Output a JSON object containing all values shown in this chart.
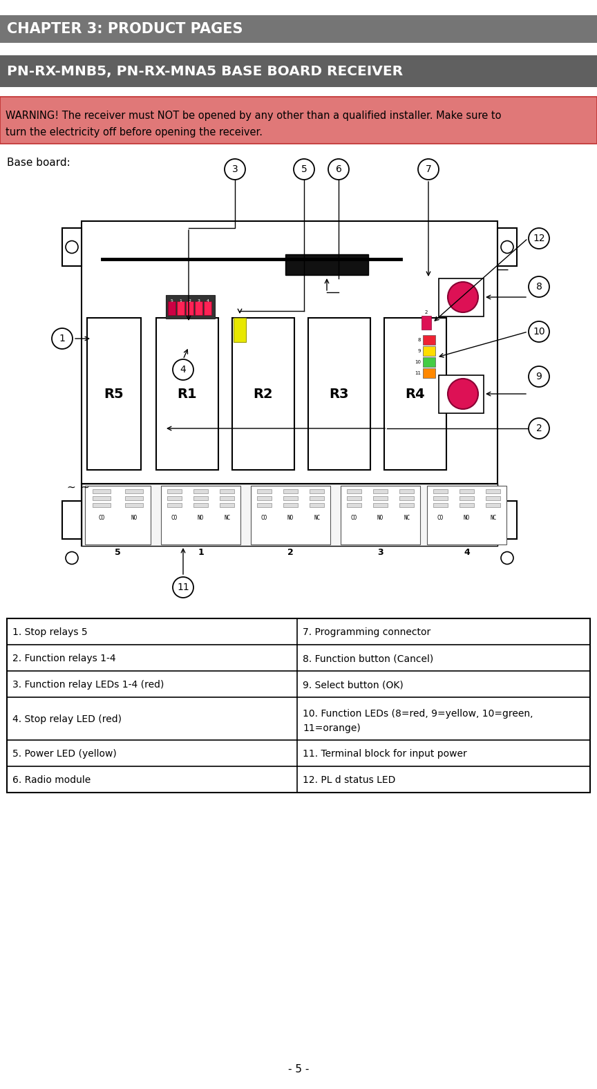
{
  "page_bg": "#ffffff",
  "chapter_bar_color": "#757575",
  "chapter_text": "CHAPTER 3: PRODUCT PAGES",
  "chapter_text_color": "#ffffff",
  "title_bar_color": "#606060",
  "title_text": "PN-RX-MNB5, PN-RX-MNA5 BASE BOARD RECEIVER",
  "title_text_color": "#ffffff",
  "warning_bg": "#e07878",
  "warning_border": "#c03030",
  "warning_text_line1": "WARNING! The receiver must NOT be opened by any other than a qualified installer. Make sure to",
  "warning_text_line2": "turn the electricity off before opening the receiver.",
  "warning_text_color": "#000000",
  "base_board_label": "Base board:",
  "table_rows": [
    [
      "1. Stop relays 5",
      "7. Programming connector"
    ],
    [
      "2. Function relays 1-4",
      "8. Function button (Cancel)"
    ],
    [
      "3. Function relay LEDs 1-4 (red)",
      "9. Select button (OK)"
    ],
    [
      "4. Stop relay LED (red)",
      "10. Function LEDs (8=red, 9=yellow, 10=green,\n11=orange)"
    ],
    [
      "5. Power LED (yellow)",
      "11. Terminal block for input power"
    ],
    [
      "6. Radio module",
      "12. PL d status LED"
    ]
  ],
  "footer_text": "- 5 -"
}
